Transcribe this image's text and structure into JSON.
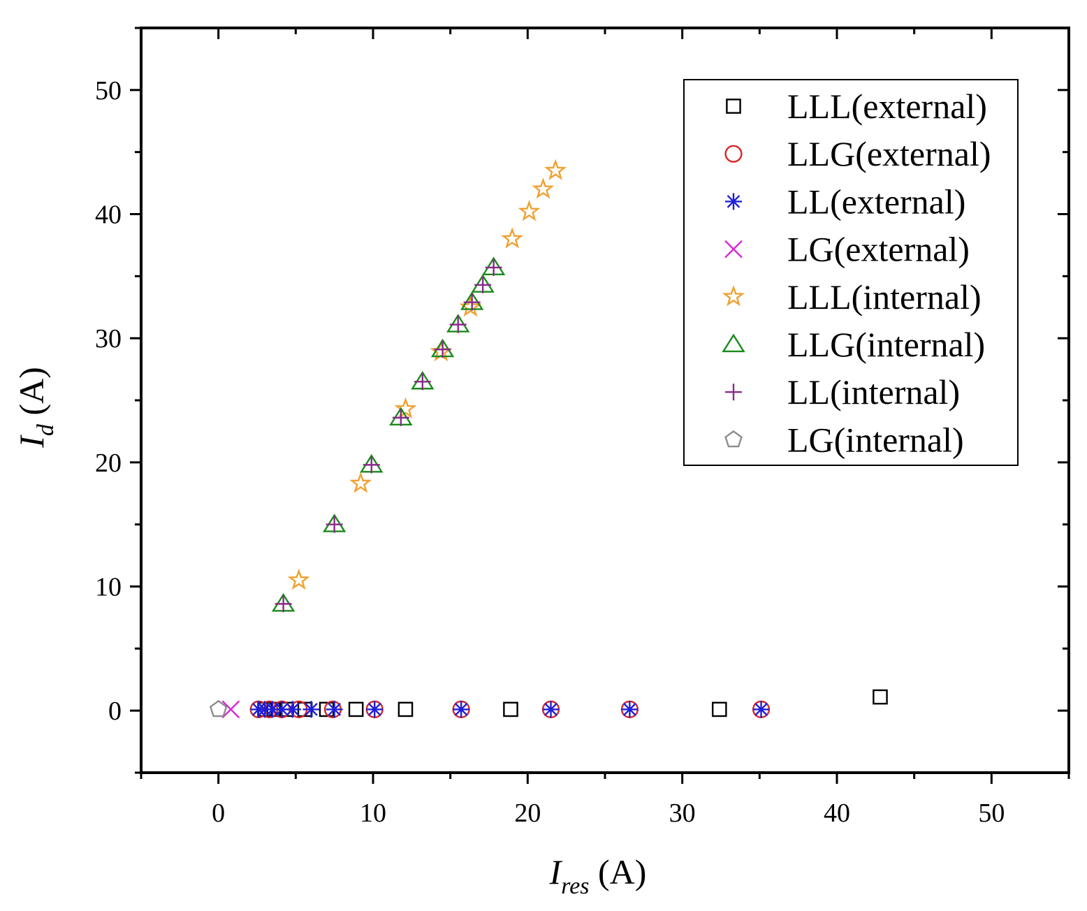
{
  "chart_data": {
    "type": "scatter",
    "title": "",
    "xlabel": {
      "main": "I",
      "sub": "res",
      "unit": " (A)"
    },
    "ylabel": {
      "main": "I",
      "sub": "d",
      "unit": " (A)"
    },
    "xlim": [
      -5,
      55
    ],
    "ylim": [
      -5,
      55
    ],
    "xticks": [
      0,
      10,
      20,
      30,
      40,
      50
    ],
    "yticks": [
      0,
      10,
      20,
      30,
      40,
      50
    ],
    "grid": false,
    "legend_position": "top-right",
    "series": [
      {
        "name": "LLL(external)",
        "marker": "square",
        "color": "#000000",
        "points": [
          [
            3.0,
            0.1
          ],
          [
            3.6,
            0.1
          ],
          [
            4.4,
            0.1
          ],
          [
            5.6,
            0.1
          ],
          [
            7.0,
            0.1
          ],
          [
            8.9,
            0.1
          ],
          [
            12.1,
            0.1
          ],
          [
            18.9,
            0.1
          ],
          [
            32.4,
            0.1
          ],
          [
            42.8,
            1.1
          ]
        ]
      },
      {
        "name": "LLG(external)",
        "marker": "circle",
        "color": "#d62728",
        "points": [
          [
            2.6,
            0.1
          ],
          [
            3.3,
            0.1
          ],
          [
            4.1,
            0.1
          ],
          [
            5.2,
            0.1
          ],
          [
            7.4,
            0.1
          ],
          [
            10.1,
            0.1
          ],
          [
            15.7,
            0.1
          ],
          [
            21.5,
            0.1
          ],
          [
            26.6,
            0.1
          ],
          [
            35.1,
            0.1
          ]
        ]
      },
      {
        "name": "LL(external)",
        "marker": "asterisk",
        "color": "#1f1fd8",
        "points": [
          [
            2.6,
            0.1
          ],
          [
            3.0,
            0.1
          ],
          [
            3.5,
            0.1
          ],
          [
            4.1,
            0.1
          ],
          [
            4.8,
            0.1
          ],
          [
            6.0,
            0.1
          ],
          [
            7.5,
            0.1
          ],
          [
            10.1,
            0.1
          ],
          [
            15.7,
            0.1
          ],
          [
            21.5,
            0.1
          ],
          [
            26.6,
            0.1
          ],
          [
            35.1,
            0.1
          ]
        ]
      },
      {
        "name": "LG(external)",
        "marker": "x",
        "color": "#d52ad5",
        "points": [
          [
            0.8,
            0.1
          ]
        ]
      },
      {
        "name": "LLL(internal)",
        "marker": "star",
        "color": "#f0a030",
        "points": [
          [
            5.2,
            10.5
          ],
          [
            9.2,
            18.3
          ],
          [
            12.1,
            24.3
          ],
          [
            14.4,
            28.9
          ],
          [
            16.3,
            32.5
          ],
          [
            19.0,
            38.0
          ],
          [
            20.1,
            40.2
          ],
          [
            21.0,
            42.0
          ],
          [
            21.8,
            43.5
          ]
        ]
      },
      {
        "name": "LLG(internal)",
        "marker": "triangle",
        "color": "#1a8a1a",
        "points": [
          [
            4.2,
            8.6
          ],
          [
            7.5,
            15.0
          ],
          [
            9.9,
            19.8
          ],
          [
            11.8,
            23.6
          ],
          [
            13.2,
            26.5
          ],
          [
            14.5,
            29.1
          ],
          [
            15.5,
            31.1
          ],
          [
            16.4,
            32.9
          ],
          [
            17.1,
            34.3
          ],
          [
            17.8,
            35.7
          ]
        ]
      },
      {
        "name": "LL(internal)",
        "marker": "plus",
        "color": "#8a2a8a",
        "points": [
          [
            4.2,
            8.6
          ],
          [
            7.5,
            15.0
          ],
          [
            9.9,
            19.8
          ],
          [
            11.8,
            23.6
          ],
          [
            13.2,
            26.5
          ],
          [
            14.5,
            29.1
          ],
          [
            15.5,
            31.1
          ],
          [
            16.4,
            32.9
          ],
          [
            17.1,
            34.3
          ],
          [
            17.8,
            35.7
          ]
        ]
      },
      {
        "name": "LG(internal)",
        "marker": "pentagon",
        "color": "#8c8c8c",
        "points": [
          [
            0.0,
            0.1
          ]
        ]
      }
    ]
  }
}
